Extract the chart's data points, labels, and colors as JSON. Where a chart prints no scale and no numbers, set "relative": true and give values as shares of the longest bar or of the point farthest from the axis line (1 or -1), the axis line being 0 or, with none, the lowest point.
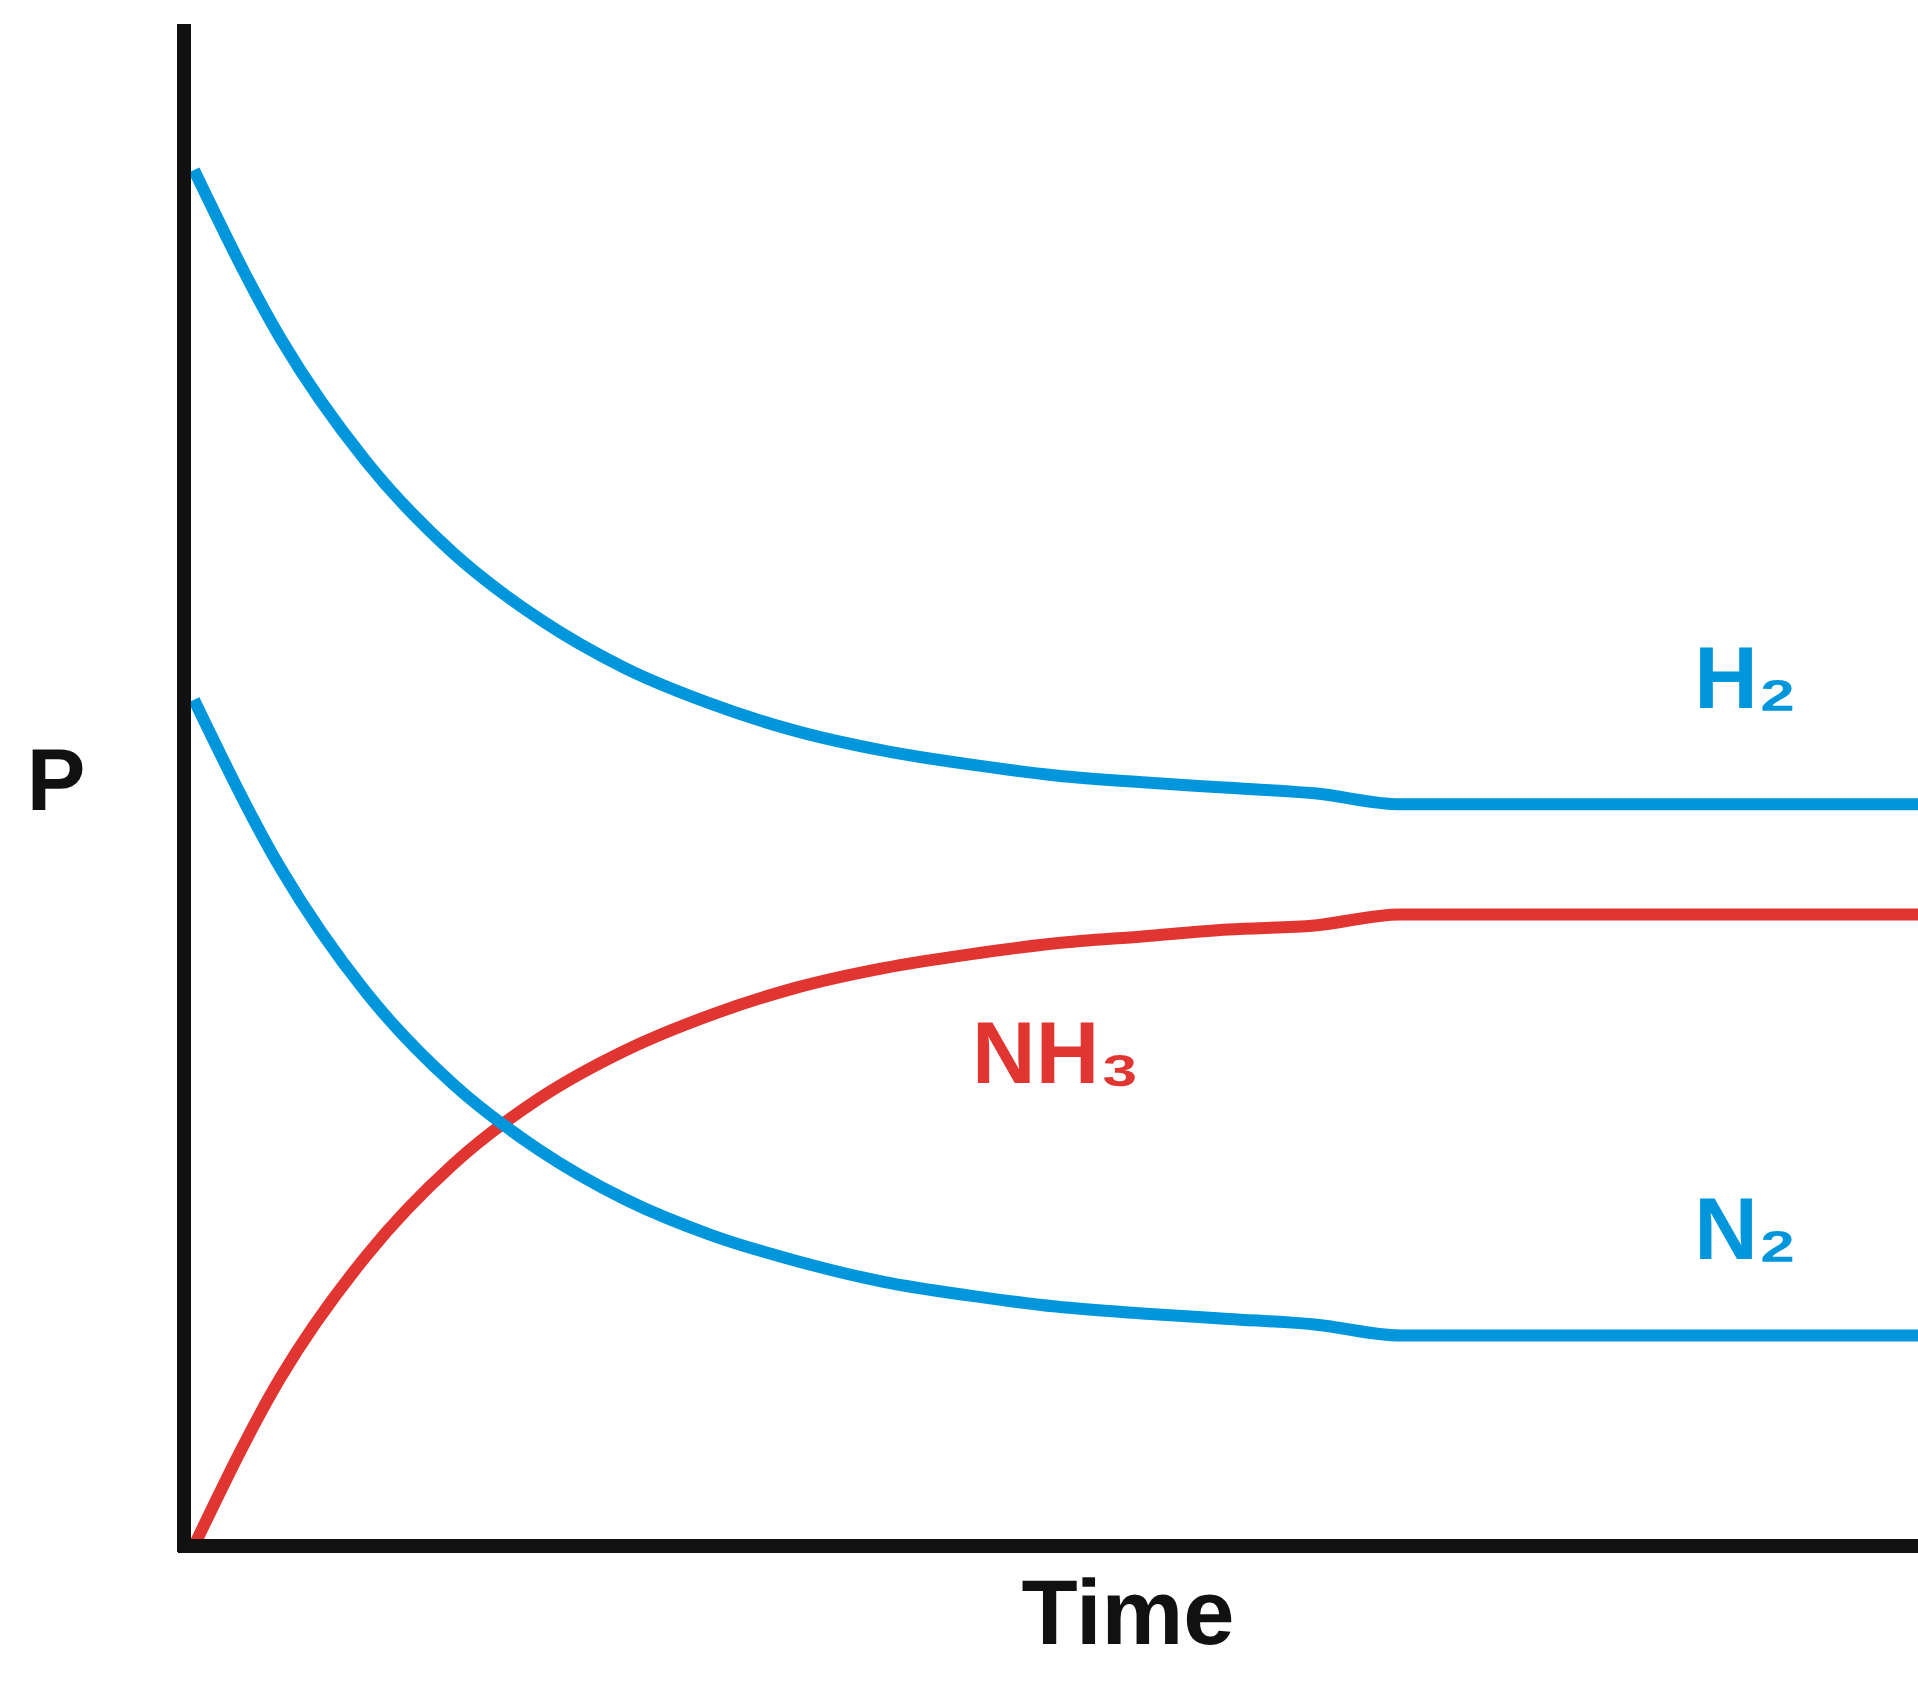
{
  "chart_data": {
    "type": "line",
    "relative": true,
    "xlabel": "Time",
    "ylabel": "P",
    "marker": "none",
    "line_style": "solid",
    "categories": [
      null,
      null,
      null,
      null,
      null,
      null,
      null,
      null,
      null,
      null,
      null,
      null,
      null,
      null,
      null,
      null,
      null,
      null,
      null,
      null,
      null
    ],
    "series": [
      {
        "name": "H₂",
        "color": "#0096dc",
        "values": [
          1.0,
          0.878,
          0.788,
          0.722,
          0.674,
          0.638,
          0.612,
          0.592,
          0.578,
          0.568,
          0.56,
          0.555,
          0.551,
          0.547,
          0.539,
          0.539,
          0.539,
          0.539,
          0.539,
          0.539,
          0.539
        ]
      },
      {
        "name": "NH₃",
        "color": "#e03530",
        "values": [
          0,
          0.122,
          0.211,
          0.277,
          0.325,
          0.36,
          0.386,
          0.406,
          0.42,
          0.43,
          0.438,
          0.443,
          0.448,
          0.451,
          0.459,
          0.459,
          0.459,
          0.459,
          0.459,
          0.459,
          0.459
        ]
      },
      {
        "name": "N₂",
        "color": "#0096dc",
        "values": [
          0.615,
          0.493,
          0.402,
          0.336,
          0.288,
          0.252,
          0.226,
          0.207,
          0.192,
          0.182,
          0.174,
          0.169,
          0.165,
          0.161,
          0.153,
          0.153,
          0.153,
          0.153,
          0.153,
          0.153,
          0.153
        ]
      }
    ]
  }
}
